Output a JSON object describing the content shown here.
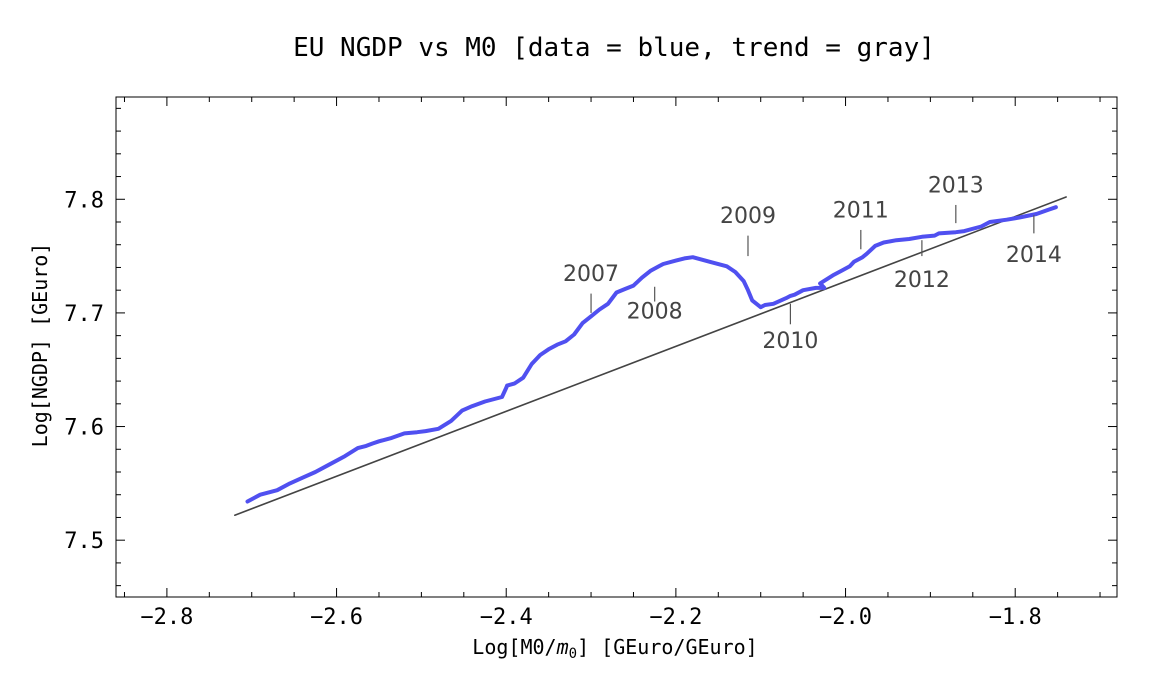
{
  "chart_data": {
    "type": "line",
    "title": "EU NGDP vs M0 [data = blue, trend = gray]",
    "xlabel": "Log[M0/m0]  [GEuro/GEuro]",
    "xlabel_parts": {
      "prefix": "Log[M0/",
      "sym": "m",
      "sub": "0",
      "suffix": "]  [GEuro/GEuro]"
    },
    "ylabel": "Log[NGDP]  [GEuro]",
    "xlim": [
      -2.86,
      -1.68
    ],
    "ylim": [
      7.45,
      7.89
    ],
    "x_major_ticks": [
      -2.8,
      -2.6,
      -2.4,
      -2.2,
      -2.0,
      -1.8
    ],
    "x_tick_labels": [
      "−2.8",
      "−2.6",
      "−2.4",
      "−2.2",
      "−2.0",
      "−1.8"
    ],
    "y_major_ticks": [
      7.5,
      7.6,
      7.7,
      7.8
    ],
    "y_tick_labels": [
      "7.5",
      "7.6",
      "7.7",
      "7.8"
    ],
    "colors": {
      "data": "#5050f0",
      "trend": "#444444",
      "annotation": "#555555"
    },
    "series": [
      {
        "name": "data",
        "color": "#5050f0",
        "x": [
          -2.705,
          -2.69,
          -2.67,
          -2.655,
          -2.64,
          -2.625,
          -2.61,
          -2.59,
          -2.575,
          -2.565,
          -2.558,
          -2.55,
          -2.535,
          -2.52,
          -2.505,
          -2.495,
          -2.48,
          -2.465,
          -2.452,
          -2.44,
          -2.425,
          -2.405,
          -2.4,
          -2.399,
          -2.39,
          -2.38,
          -2.37,
          -2.36,
          -2.35,
          -2.34,
          -2.33,
          -2.32,
          -2.31,
          -2.3,
          -2.29,
          -2.28,
          -2.27,
          -2.26,
          -2.25,
          -2.24,
          -2.23,
          -2.22,
          -2.215,
          -2.2,
          -2.19,
          -2.18,
          -2.16,
          -2.14,
          -2.13,
          -2.12,
          -2.115,
          -2.11,
          -2.1,
          -2.095,
          -2.085,
          -2.07,
          -2.065,
          -2.06,
          -2.05,
          -2.035,
          -2.025,
          -2.03,
          -2.015,
          -2.005,
          -1.995,
          -1.99,
          -1.98,
          -1.975,
          -1.965,
          -1.955,
          -1.94,
          -1.925,
          -1.91,
          -1.895,
          -1.89,
          -1.87,
          -1.86,
          -1.84,
          -1.83,
          -1.81,
          -1.795,
          -1.775,
          -1.76,
          -1.752
        ],
        "y": [
          7.534,
          7.54,
          7.544,
          7.55,
          7.555,
          7.56,
          7.566,
          7.574,
          7.581,
          7.583,
          7.585,
          7.587,
          7.59,
          7.594,
          7.595,
          7.596,
          7.598,
          7.605,
          7.614,
          7.618,
          7.622,
          7.626,
          7.634,
          7.636,
          7.638,
          7.643,
          7.655,
          7.663,
          7.668,
          7.672,
          7.675,
          7.681,
          7.691,
          7.697,
          7.703,
          7.708,
          7.718,
          7.721,
          7.724,
          7.731,
          7.737,
          7.741,
          7.743,
          7.746,
          7.748,
          7.749,
          7.745,
          7.741,
          7.736,
          7.728,
          7.72,
          7.711,
          7.705,
          7.707,
          7.708,
          7.713,
          7.715,
          7.716,
          7.72,
          7.722,
          7.722,
          7.726,
          7.733,
          7.737,
          7.741,
          7.745,
          7.749,
          7.752,
          7.759,
          7.762,
          7.764,
          7.765,
          7.767,
          7.768,
          7.77,
          7.771,
          7.772,
          7.776,
          7.78,
          7.782,
          7.784,
          7.787,
          7.791,
          7.793
        ]
      },
      {
        "name": "trend",
        "color": "#444444",
        "x": [
          -2.72,
          -1.74
        ],
        "y": [
          7.522,
          7.802
        ]
      }
    ],
    "annotations": [
      {
        "text": "2007",
        "x": -2.3,
        "y": 7.7,
        "y_end": 7.717,
        "label_y": 7.735,
        "position": "above"
      },
      {
        "text": "2008",
        "x": -2.225,
        "y": 7.723,
        "y_end": 7.71,
        "label_y": 7.702,
        "position": "below"
      },
      {
        "text": "2009",
        "x": -2.115,
        "y": 7.75,
        "y_end": 7.768,
        "label_y": 7.786,
        "position": "above"
      },
      {
        "text": "2010",
        "x": -2.065,
        "y": 7.708,
        "y_end": 7.69,
        "label_y": 7.676,
        "position": "below"
      },
      {
        "text": "2011",
        "x": -1.982,
        "y": 7.756,
        "y_end": 7.773,
        "label_y": 7.791,
        "position": "above"
      },
      {
        "text": "2012",
        "x": -1.91,
        "y": 7.764,
        "y_end": 7.75,
        "label_y": 7.73,
        "position": "below"
      },
      {
        "text": "2013",
        "x": -1.87,
        "y": 7.779,
        "y_end": 7.795,
        "label_y": 7.813,
        "position": "above"
      },
      {
        "text": "2014",
        "x": -1.778,
        "y": 7.786,
        "y_end": 7.77,
        "label_y": 7.752,
        "position": "below"
      }
    ]
  }
}
